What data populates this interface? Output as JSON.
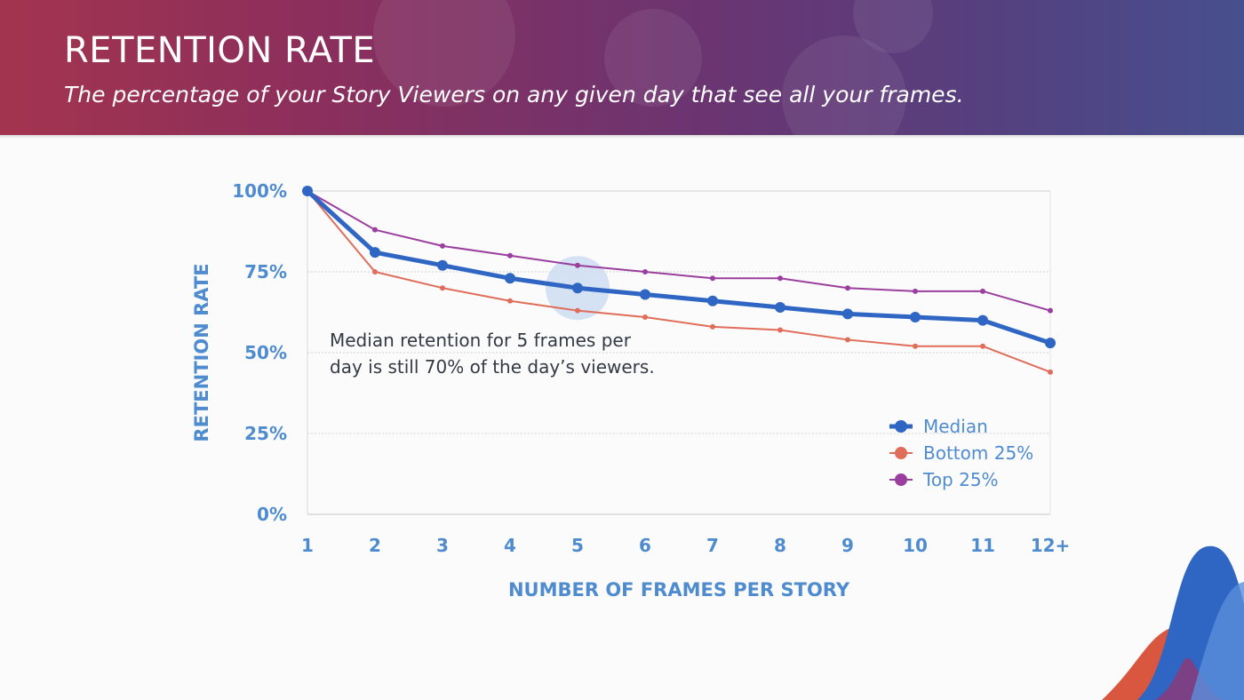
{
  "header": {
    "title": "RETENTION RATE",
    "subtitle": "The percentage of your Story Viewers on any given day that see all your frames."
  },
  "chart_data": {
    "type": "line",
    "xlabel": "NUMBER OF FRAMES PER STORY",
    "ylabel": "RETENTION RATE",
    "categories": [
      "1",
      "2",
      "3",
      "4",
      "5",
      "6",
      "7",
      "8",
      "9",
      "10",
      "11",
      "12+"
    ],
    "ylim": [
      0,
      100
    ],
    "yticks": [
      0,
      25,
      50,
      75,
      100
    ],
    "ytick_labels": [
      "0%",
      "25%",
      "50%",
      "75%",
      "100%"
    ],
    "grid": "horizontal dotted",
    "legend_position": "bottom-right",
    "series": [
      {
        "name": "Median",
        "color": "#2f66c4",
        "values": [
          100,
          81,
          77,
          73,
          70,
          68,
          66,
          64,
          62,
          61,
          60,
          53
        ]
      },
      {
        "name": "Bottom 25%",
        "color": "#e06d5a",
        "values": [
          100,
          75,
          70,
          66,
          63,
          61,
          58,
          57,
          54,
          52,
          52,
          44
        ]
      },
      {
        "name": "Top 25%",
        "color": "#9b3f9e",
        "values": [
          100,
          88,
          83,
          80,
          77,
          75,
          73,
          73,
          70,
          69,
          69,
          63
        ]
      }
    ],
    "annotation": {
      "lines": [
        "Median retention for 5 frames per",
        "day is still 70% of the day’s viewers."
      ],
      "highlight_category": "5",
      "highlight_series": "Median"
    }
  }
}
